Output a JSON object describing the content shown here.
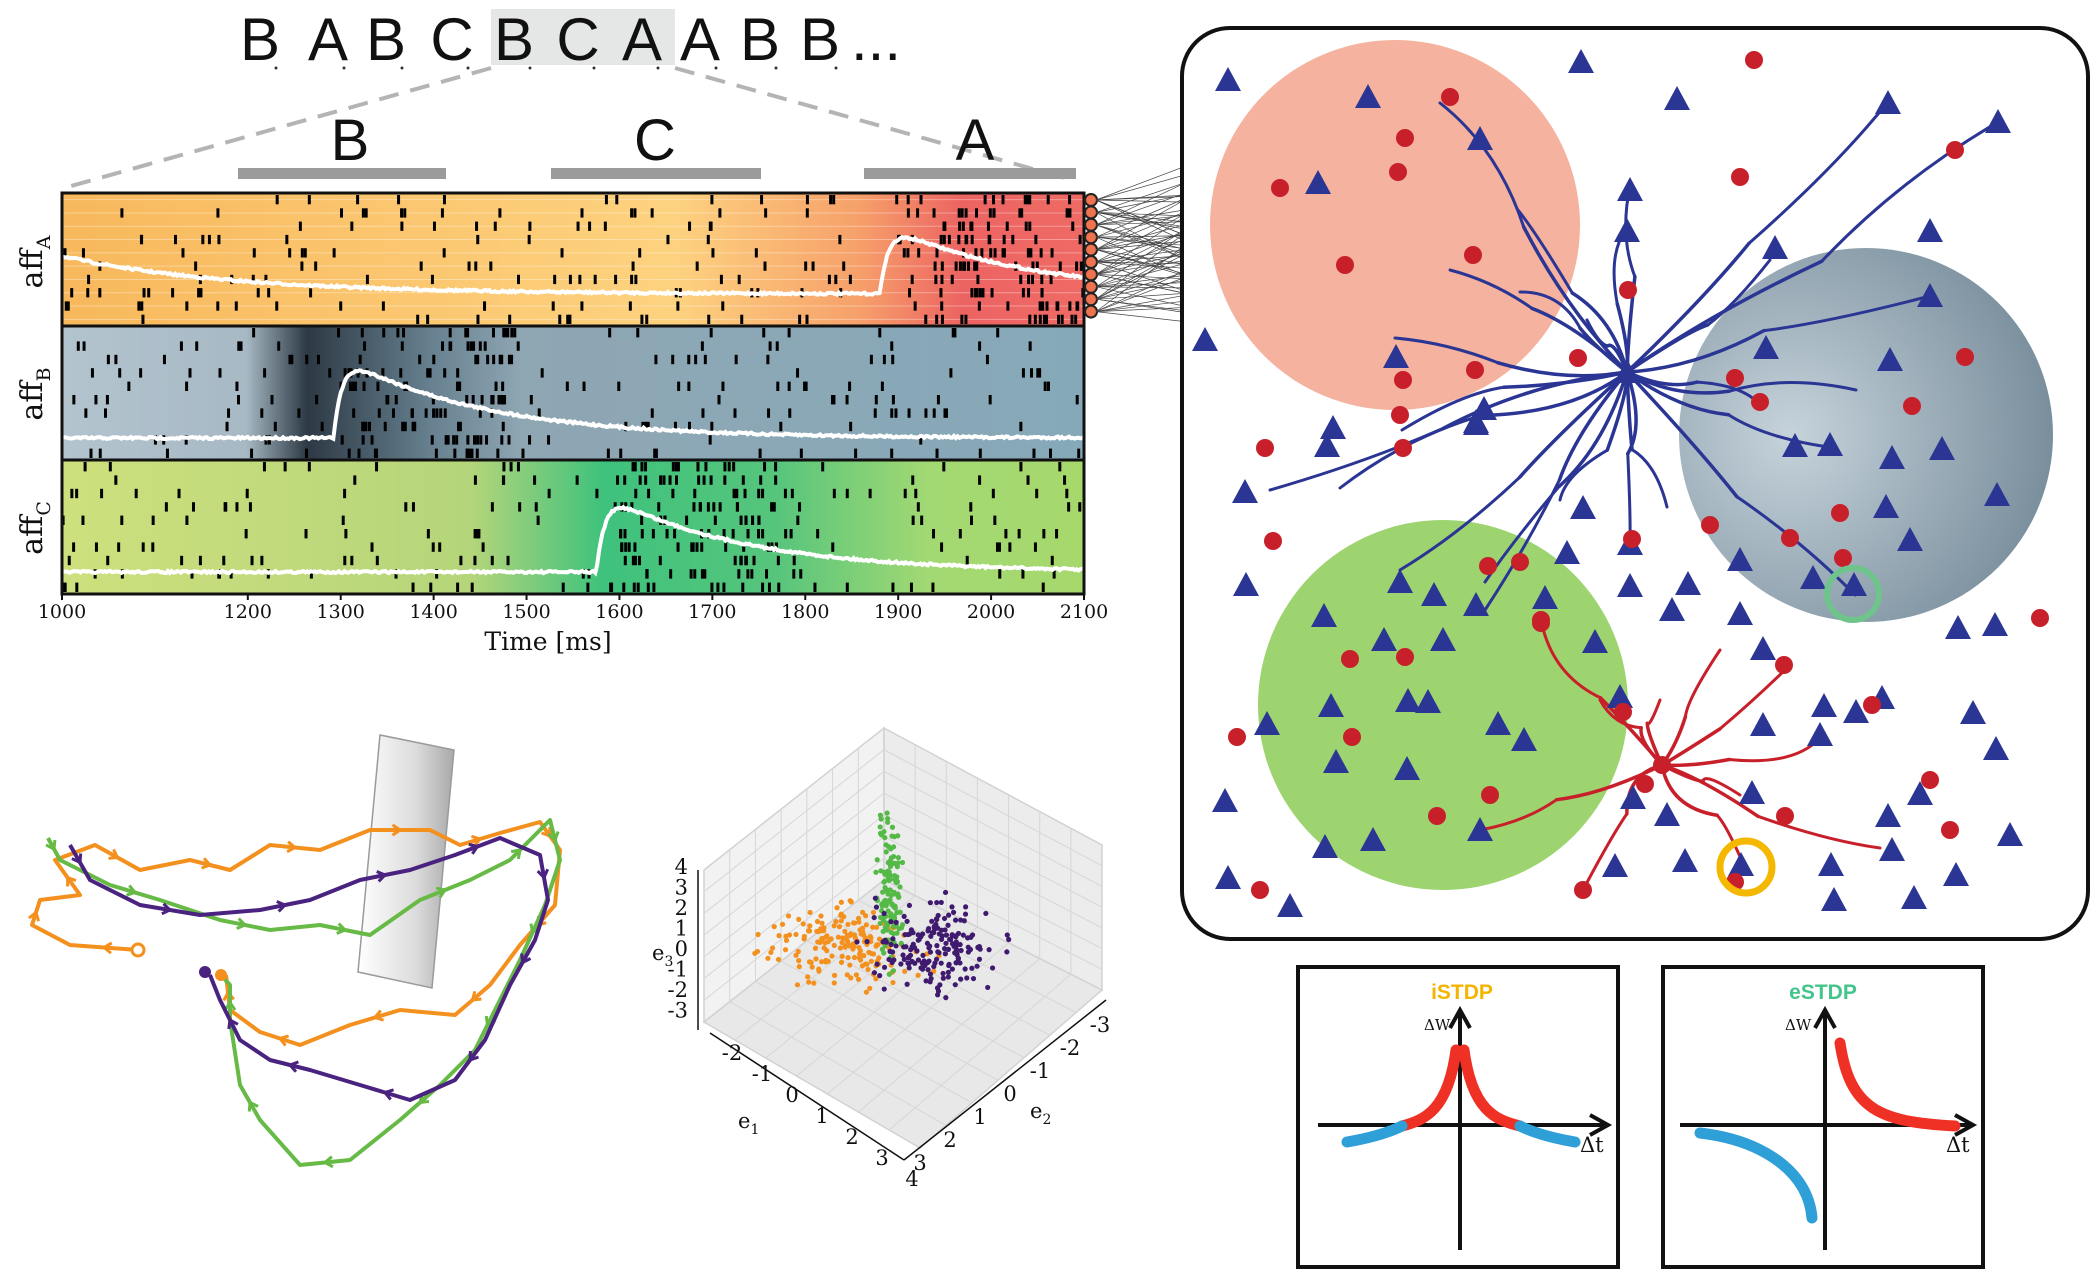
{
  "sequence": {
    "tokens": [
      "B",
      "A",
      "B",
      "C",
      "B",
      "C",
      "A",
      "A",
      "B",
      "B"
    ],
    "ellipsis": "..."
  },
  "segments": [
    "B",
    "C",
    "A"
  ],
  "raster": {
    "rows": [
      {
        "main": "aff",
        "sub": "A",
        "fill": "#f9c46a",
        "highlight": "#ef5b5b",
        "stim_start": 1900
      },
      {
        "main": "aff",
        "sub": "B",
        "fill": "#a3bac6",
        "highlight": "#2f3d48",
        "stim_start": 1300
      },
      {
        "main": "aff",
        "sub": "C",
        "fill": "#c8df7a",
        "highlight": "#3cc07f",
        "stim_start": 1600
      }
    ],
    "x_ticks": [
      "1000",
      "1200",
      "1300",
      "1400",
      "1500",
      "1600",
      "1700",
      "1800",
      "1900",
      "2000",
      "2100"
    ],
    "x_range": [
      1000,
      2100
    ],
    "x_label": "Time [ms]"
  },
  "network": {
    "assembly_colors": {
      "A": "#f5b29e",
      "B": "#9fb3c0",
      "C": "#9dd470"
    },
    "excitatory_color": "#2a3594",
    "inhibitory_color": "#c8202b",
    "exc_highlight": "#6ec48a",
    "inh_highlight": "#f4b800"
  },
  "scatter3d": {
    "e3_ticks": [
      "4",
      "3",
      "2",
      "1",
      "0",
      "-1",
      "-2",
      "-3"
    ],
    "e1_ticks": [
      "-2",
      "-1",
      "0",
      "1",
      "2",
      "3",
      "4"
    ],
    "e2_ticks": [
      "-3",
      "-2",
      "-1",
      "0",
      "1",
      "2",
      "3"
    ],
    "e3": {
      "main": "e",
      "sub": "3"
    },
    "e1": {
      "main": "e",
      "sub": "1"
    },
    "e2": {
      "main": "e",
      "sub": "2"
    },
    "series_colors": [
      "#f3901e",
      "#55b947",
      "#3f1a6e"
    ]
  },
  "stdp": [
    {
      "title": "iSTDP",
      "title_color": "#f4b400",
      "y_label": "ΔW",
      "x_label": "Δt",
      "kind": "symmetric"
    },
    {
      "title": "eSTDP",
      "title_color": "#44c48a",
      "y_label": "ΔW",
      "x_label": "Δt",
      "kind": "asymmetric"
    }
  ],
  "colors": {
    "trajectory_orange": "#f3901e",
    "trajectory_green": "#66ba45",
    "trajectory_purple": "#4a2280",
    "stdp_red": "#ef3125",
    "stdp_blue": "#2f9fd8"
  }
}
